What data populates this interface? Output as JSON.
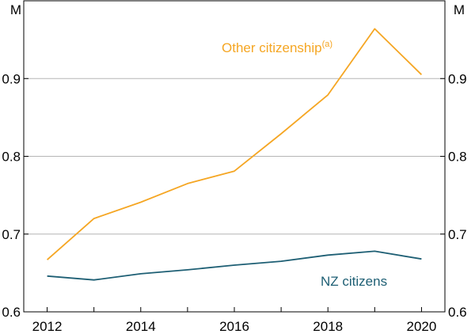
{
  "chart_data": {
    "type": "line",
    "title": "",
    "xlabel": "",
    "ylabel": "",
    "unit_left": "M",
    "unit_right": "M",
    "xlim": [
      2011.5,
      2020.5
    ],
    "ylim": [
      0.6,
      1.0
    ],
    "x_ticks": [
      2012,
      2014,
      2016,
      2018,
      2020
    ],
    "x_tick_labels": [
      "2012",
      "2014",
      "2016",
      "2018",
      "2020"
    ],
    "y_ticks": [
      0.6,
      0.7,
      0.8,
      0.9
    ],
    "y_tick_labels": [
      "0.6",
      "0.7",
      "0.8",
      "0.9"
    ],
    "grid": true,
    "x": [
      2012,
      2013,
      2014,
      2015,
      2016,
      2017,
      2018,
      2019,
      2020
    ],
    "series": [
      {
        "name": "Other citizenship",
        "superscript": "(a)",
        "color": "#f5a623",
        "values": [
          0.667,
          0.72,
          0.741,
          0.765,
          0.781,
          0.829,
          0.879,
          0.964,
          0.905
        ]
      },
      {
        "name": "NZ citizens",
        "color": "#1e5f74",
        "values": [
          0.646,
          0.641,
          0.649,
          0.654,
          0.66,
          0.665,
          0.673,
          0.678,
          0.668
        ]
      }
    ]
  }
}
